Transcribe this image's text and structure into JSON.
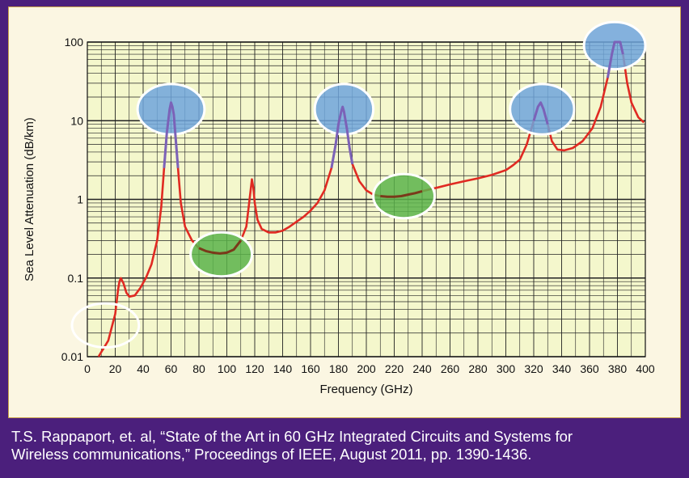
{
  "chart_data": {
    "type": "line",
    "title": "",
    "xlabel": "Frequency (GHz)",
    "ylabel": "Sea Level Attenuation (dB/km)",
    "xlim": [
      0,
      400
    ],
    "ylim": [
      0.01,
      100
    ],
    "yscale": "log",
    "grid": true,
    "x_ticks": [
      "0",
      "20",
      "40",
      "60",
      "80",
      "100",
      "120",
      "140",
      "160",
      "180",
      "200",
      "220",
      "240",
      "260",
      "280",
      "300",
      "320",
      "340",
      "360",
      "380",
      "400"
    ],
    "y_ticks": [
      "0.01",
      "0.1",
      "1",
      "10",
      "100"
    ],
    "series": [
      {
        "color": "#e02a22",
        "points": [
          [
            8,
            0.01
          ],
          [
            15,
            0.016
          ],
          [
            20,
            0.035
          ],
          [
            22,
            0.07
          ],
          [
            23,
            0.09
          ],
          [
            24,
            0.1
          ],
          [
            26,
            0.085
          ],
          [
            28,
            0.065
          ],
          [
            30,
            0.058
          ],
          [
            34,
            0.06
          ],
          [
            38,
            0.075
          ],
          [
            42,
            0.1
          ],
          [
            46,
            0.15
          ],
          [
            50,
            0.3
          ],
          [
            53,
            0.8
          ],
          [
            55,
            2.5
          ],
          [
            57,
            7
          ],
          [
            59,
            14
          ],
          [
            60,
            17
          ],
          [
            61,
            15
          ],
          [
            62,
            12
          ],
          [
            63,
            7
          ],
          [
            65,
            2.5
          ],
          [
            67,
            0.9
          ],
          [
            70,
            0.45
          ],
          [
            75,
            0.3
          ],
          [
            80,
            0.24
          ],
          [
            85,
            0.22
          ],
          [
            90,
            0.21
          ],
          [
            95,
            0.205
          ],
          [
            100,
            0.21
          ],
          [
            105,
            0.23
          ],
          [
            110,
            0.3
          ],
          [
            114,
            0.45
          ],
          [
            116,
            0.9
          ],
          [
            118,
            1.8
          ],
          [
            119,
            1.4
          ],
          [
            120,
            0.9
          ],
          [
            122,
            0.55
          ],
          [
            125,
            0.42
          ],
          [
            130,
            0.38
          ],
          [
            135,
            0.38
          ],
          [
            140,
            0.4
          ],
          [
            145,
            0.45
          ],
          [
            150,
            0.52
          ],
          [
            155,
            0.6
          ],
          [
            160,
            0.72
          ],
          [
            165,
            0.9
          ],
          [
            170,
            1.3
          ],
          [
            175,
            2.5
          ],
          [
            178,
            5
          ],
          [
            180,
            9
          ],
          [
            182,
            13
          ],
          [
            183,
            15
          ],
          [
            184,
            13
          ],
          [
            186,
            8
          ],
          [
            188,
            4.5
          ],
          [
            190,
            2.8
          ],
          [
            195,
            1.7
          ],
          [
            200,
            1.3
          ],
          [
            205,
            1.15
          ],
          [
            210,
            1.1
          ],
          [
            215,
            1.08
          ],
          [
            220,
            1.08
          ],
          [
            225,
            1.1
          ],
          [
            230,
            1.15
          ],
          [
            235,
            1.2
          ],
          [
            240,
            1.27
          ],
          [
            250,
            1.4
          ],
          [
            260,
            1.55
          ],
          [
            270,
            1.7
          ],
          [
            280,
            1.85
          ],
          [
            290,
            2.05
          ],
          [
            300,
            2.35
          ],
          [
            305,
            2.7
          ],
          [
            310,
            3.2
          ],
          [
            315,
            5
          ],
          [
            320,
            10
          ],
          [
            323,
            15
          ],
          [
            325,
            17
          ],
          [
            327,
            14
          ],
          [
            330,
            9
          ],
          [
            333,
            5.5
          ],
          [
            337,
            4.3
          ],
          [
            342,
            4.2
          ],
          [
            348,
            4.5
          ],
          [
            355,
            5.5
          ],
          [
            362,
            8
          ],
          [
            368,
            15
          ],
          [
            373,
            35
          ],
          [
            376,
            70
          ],
          [
            378,
            100
          ],
          [
            382,
            100
          ],
          [
            384,
            70
          ],
          [
            387,
            30
          ],
          [
            390,
            17
          ],
          [
            395,
            11
          ],
          [
            399,
            9.5
          ]
        ]
      }
    ],
    "highlight_bands": [
      {
        "x_start": 54,
        "x_end": 66,
        "y_low": 8,
        "y_high": 20,
        "color": "#7b62b8"
      },
      {
        "x_start": 175,
        "x_end": 190,
        "y_low": 8,
        "y_high": 15,
        "color": "#7b62b8"
      },
      {
        "x_start": 316,
        "x_end": 330,
        "y_low": 8,
        "y_high": 18,
        "color": "#7b62b8"
      },
      {
        "x_start": 372,
        "x_end": 384,
        "y_low": 50,
        "y_high": 100,
        "color": "#7b62b8"
      },
      {
        "x_start": 78,
        "x_end": 112,
        "y_low": 0.2,
        "y_high": 0.3,
        "color": "#7a3a1a"
      },
      {
        "x_start": 208,
        "x_end": 245,
        "y_low": 1.0,
        "y_high": 1.3,
        "color": "#7a3a1a"
      }
    ],
    "circles": [
      {
        "cx": 60,
        "cy": 14,
        "rx": 24,
        "ry_decades": 0.32,
        "fill": "#6ea4dc"
      },
      {
        "cx": 184,
        "cy": 14,
        "rx": 21,
        "ry_decades": 0.32,
        "fill": "#6ea4dc"
      },
      {
        "cx": 326,
        "cy": 14,
        "rx": 23,
        "ry_decades": 0.32,
        "fill": "#6ea4dc"
      },
      {
        "cx": 378,
        "cy": 90,
        "rx": 22,
        "ry_decades": 0.3,
        "fill": "#6ea4dc"
      },
      {
        "cx": 96,
        "cy": 0.2,
        "rx": 22,
        "ry_decades": 0.28,
        "fill": "#5bb34a"
      },
      {
        "cx": 227,
        "cy": 1.1,
        "rx": 22,
        "ry_decades": 0.28,
        "fill": "#5bb34a"
      },
      {
        "cx": 13,
        "cy": 0.025,
        "rx": 24,
        "ry_decades": 0.28,
        "fill": "none"
      }
    ],
    "colors": {
      "plot_background": "#f4f7cc",
      "grid": "#222222",
      "line": "#e02a22"
    }
  },
  "caption": {
    "line1": "T.S. Rappaport, et. al, “State of the Art in 60 GHz Integrated Circuits and Systems for",
    "line2": "Wireless communications,” Proceedings of IEEE, August 2011, pp. 1390-1436."
  }
}
